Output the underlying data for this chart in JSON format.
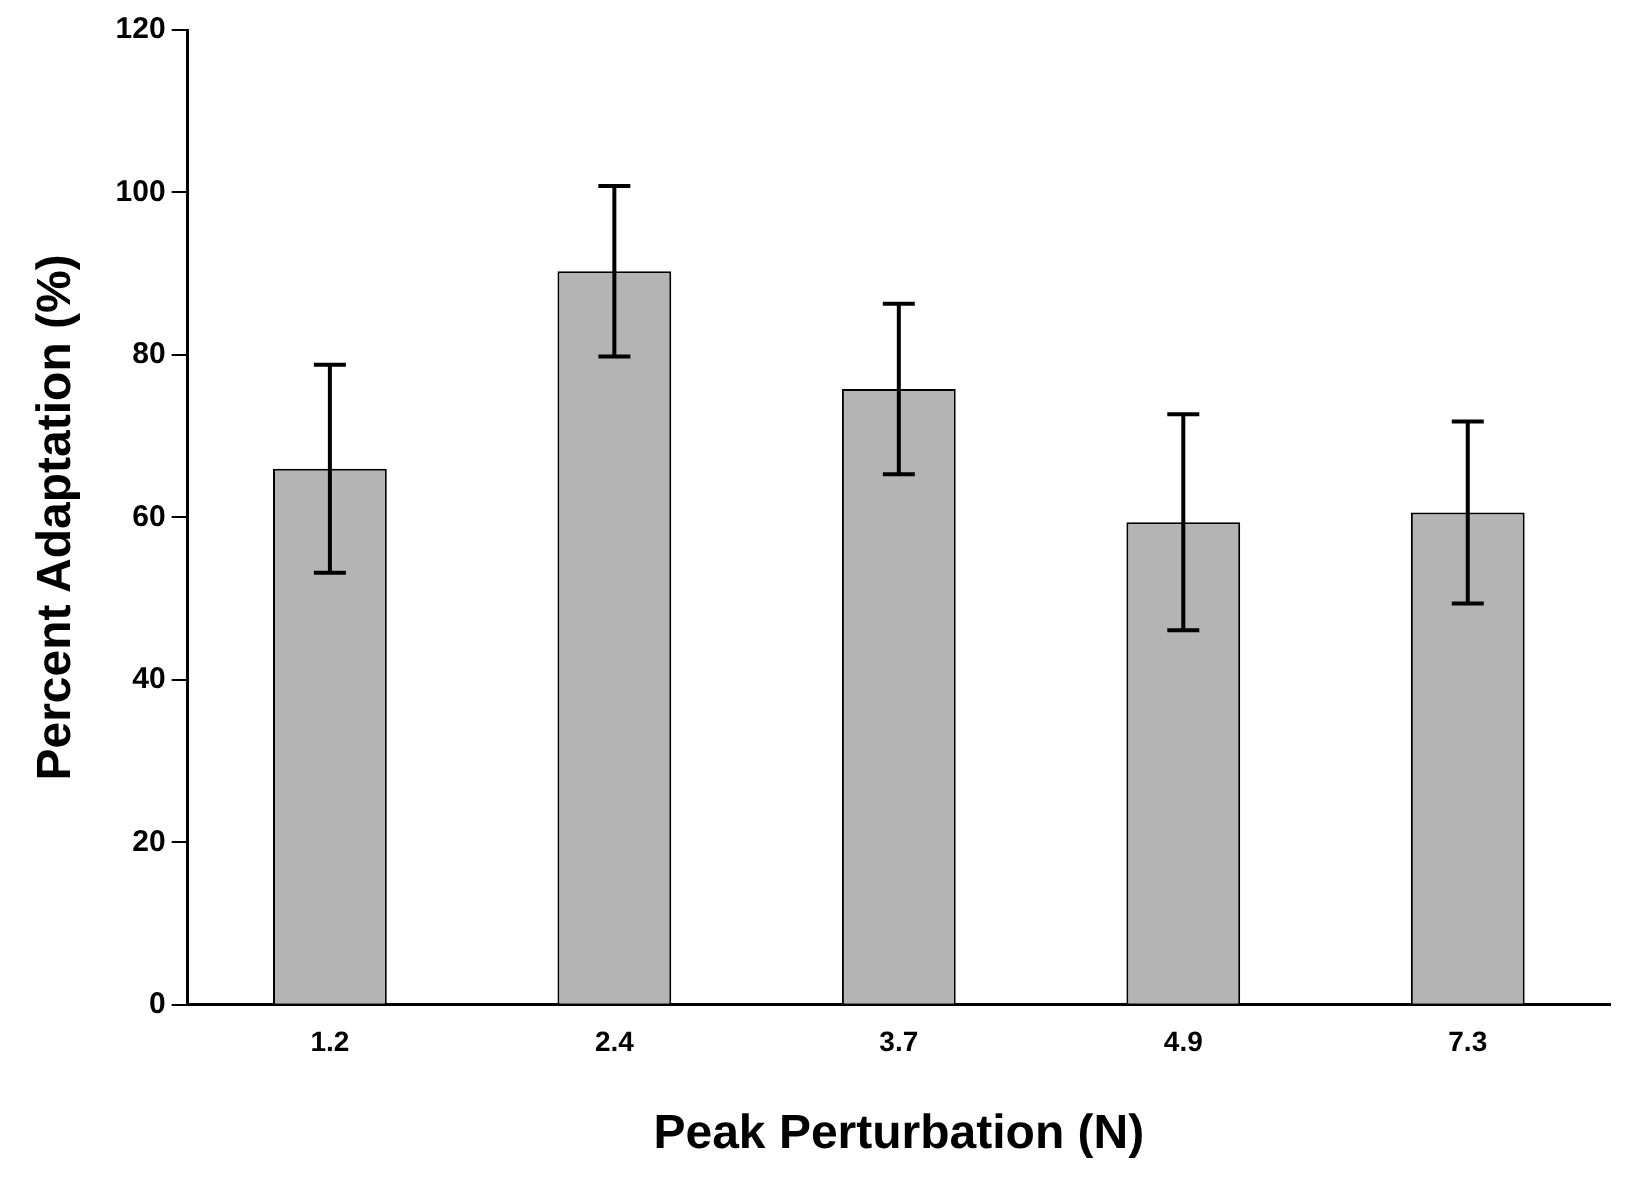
{
  "chart_data": {
    "type": "bar",
    "xlabel": "Peak Perturbation (N)",
    "ylabel": "Percent Adaptation (%)",
    "categories": [
      "1.2",
      "2.4",
      "3.7",
      "4.9",
      "7.3"
    ],
    "values": [
      66,
      90.3,
      75.8,
      59.4,
      60.6
    ],
    "errors": [
      12.8,
      10.5,
      10.5,
      13.3,
      11.2
    ],
    "color": "#b4b4b4",
    "ylim": [
      0,
      120
    ],
    "yticks": [
      0,
      20,
      40,
      60,
      80,
      100,
      120
    ],
    "grid": false,
    "legend": false
  }
}
